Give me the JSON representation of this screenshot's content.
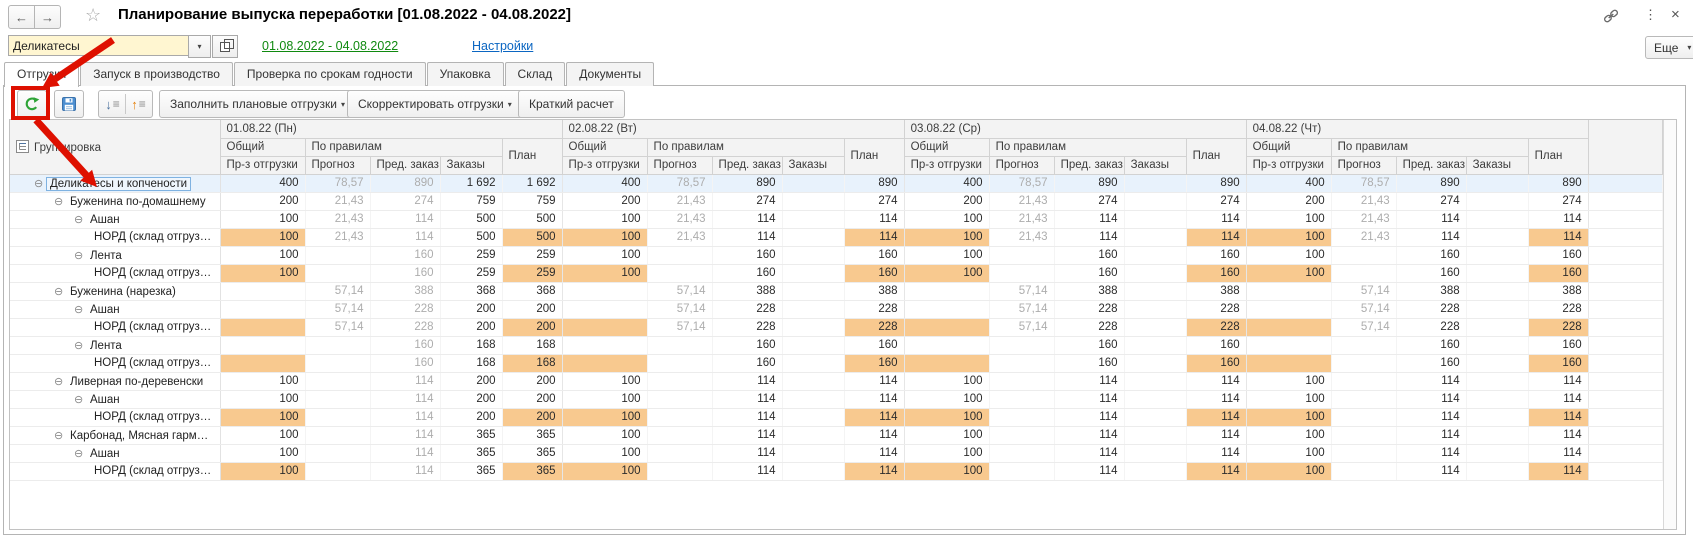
{
  "window": {
    "title": "Планирование выпуска переработки [01.08.2022 - 04.08.2022]"
  },
  "icons": {
    "back": "←",
    "forward": "→",
    "favorite_star": "☆",
    "more_vertical": "⋮",
    "close": "×",
    "dropdown": "▾",
    "expander": "⊖",
    "expand_all_arrow": "↓",
    "collapse_all_arrow": "↑",
    "list_lines": "≡"
  },
  "colors": {
    "annotation_red": "#de1000",
    "highlight_orange": "#f8c98f",
    "selected_row_blue": "#e8f2fc",
    "period_link_green": "#108a10",
    "settings_link_blue": "#0b66c2",
    "input_yellow": "#fff6d1",
    "refresh_green": "#2ea437",
    "save_blue": "#4d8fd1"
  },
  "filter_bar": {
    "product_group_value": "Деликатесы",
    "period_link": "01.08.2022 - 04.08.2022",
    "settings_link": "Настройки",
    "more_button": "Еще"
  },
  "tabs": [
    {
      "id": "shipments",
      "label": "Отгрузки",
      "active": true
    },
    {
      "id": "production-launch",
      "label": "Запуск в производство",
      "active": false
    },
    {
      "id": "expiry-check",
      "label": "Проверка по срокам годности",
      "active": false
    },
    {
      "id": "packaging",
      "label": "Упаковка",
      "active": false
    },
    {
      "id": "warehouse",
      "label": "Склад",
      "active": false
    },
    {
      "id": "documents",
      "label": "Документы",
      "active": false
    }
  ],
  "toolbar": {
    "fill_label": "Заполнить плановые отгрузки",
    "adjust_label": "Скорректировать отгрузки",
    "calc_label": "Краткий расчет"
  },
  "table": {
    "grouping_header": "Группировка",
    "day_headers": [
      "01.08.22 (Пн)",
      "02.08.22 (Вт)",
      "03.08.22 (Ср)",
      "04.08.22 (Чт)"
    ],
    "group_cols": {
      "total": "Общий",
      "by_rules": "По правилам",
      "plan": "План"
    },
    "sub_cols": [
      "Пр-з отгрузки",
      "Прогноз",
      "Пред. заказ",
      "Заказы"
    ],
    "rows": [
      {
        "name": "Деликатесы и копчености",
        "level": 0,
        "leaf": false,
        "selected": true,
        "hl": false,
        "days": [
          [
            "400",
            "78,57",
            "890",
            "1 692",
            "1 692"
          ],
          [
            "400",
            "78,57",
            "890",
            "",
            "890"
          ],
          [
            "400",
            "78,57",
            "890",
            "",
            "890"
          ],
          [
            "400",
            "78,57",
            "890",
            "",
            "890"
          ]
        ]
      },
      {
        "name": "Буженина по-домашнему",
        "level": 1,
        "leaf": false,
        "selected": false,
        "hl": false,
        "days": [
          [
            "200",
            "21,43",
            "274",
            "759",
            "759"
          ],
          [
            "200",
            "21,43",
            "274",
            "",
            "274"
          ],
          [
            "200",
            "21,43",
            "274",
            "",
            "274"
          ],
          [
            "200",
            "21,43",
            "274",
            "",
            "274"
          ]
        ]
      },
      {
        "name": "Ашан",
        "level": 2,
        "leaf": false,
        "selected": false,
        "hl": false,
        "days": [
          [
            "100",
            "21,43",
            "114",
            "500",
            "500"
          ],
          [
            "100",
            "21,43",
            "114",
            "",
            "114"
          ],
          [
            "100",
            "21,43",
            "114",
            "",
            "114"
          ],
          [
            "100",
            "21,43",
            "114",
            "",
            "114"
          ]
        ]
      },
      {
        "name": "НОРД (склад отгруз…",
        "level": 3,
        "leaf": true,
        "selected": false,
        "hl": true,
        "days": [
          [
            "100",
            "21,43",
            "114",
            "500",
            "500"
          ],
          [
            "100",
            "21,43",
            "114",
            "",
            "114"
          ],
          [
            "100",
            "21,43",
            "114",
            "",
            "114"
          ],
          [
            "100",
            "21,43",
            "114",
            "",
            "114"
          ]
        ]
      },
      {
        "name": "Лента",
        "level": 2,
        "leaf": false,
        "selected": false,
        "hl": false,
        "days": [
          [
            "100",
            "",
            "160",
            "259",
            "259"
          ],
          [
            "100",
            "",
            "160",
            "",
            "160"
          ],
          [
            "100",
            "",
            "160",
            "",
            "160"
          ],
          [
            "100",
            "",
            "160",
            "",
            "160"
          ]
        ]
      },
      {
        "name": "НОРД (склад отгруз…",
        "level": 3,
        "leaf": true,
        "selected": false,
        "hl": true,
        "days": [
          [
            "100",
            "",
            "160",
            "259",
            "259"
          ],
          [
            "100",
            "",
            "160",
            "",
            "160"
          ],
          [
            "100",
            "",
            "160",
            "",
            "160"
          ],
          [
            "100",
            "",
            "160",
            "",
            "160"
          ]
        ]
      },
      {
        "name": "Буженина (нарезка)",
        "level": 1,
        "leaf": false,
        "selected": false,
        "hl": false,
        "days": [
          [
            "",
            "57,14",
            "388",
            "368",
            "368"
          ],
          [
            "",
            "57,14",
            "388",
            "",
            "388"
          ],
          [
            "",
            "57,14",
            "388",
            "",
            "388"
          ],
          [
            "",
            "57,14",
            "388",
            "",
            "388"
          ]
        ]
      },
      {
        "name": "Ашан",
        "level": 2,
        "leaf": false,
        "selected": false,
        "hl": false,
        "days": [
          [
            "",
            "57,14",
            "228",
            "200",
            "200"
          ],
          [
            "",
            "57,14",
            "228",
            "",
            "228"
          ],
          [
            "",
            "57,14",
            "228",
            "",
            "228"
          ],
          [
            "",
            "57,14",
            "228",
            "",
            "228"
          ]
        ]
      },
      {
        "name": "НОРД (склад отгруз…",
        "level": 3,
        "leaf": true,
        "selected": false,
        "hl": true,
        "days": [
          [
            "",
            "57,14",
            "228",
            "200",
            "200"
          ],
          [
            "",
            "57,14",
            "228",
            "",
            "228"
          ],
          [
            "",
            "57,14",
            "228",
            "",
            "228"
          ],
          [
            "",
            "57,14",
            "228",
            "",
            "228"
          ]
        ]
      },
      {
        "name": "Лента",
        "level": 2,
        "leaf": false,
        "selected": false,
        "hl": false,
        "days": [
          [
            "",
            "",
            "160",
            "168",
            "168"
          ],
          [
            "",
            "",
            "160",
            "",
            "160"
          ],
          [
            "",
            "",
            "160",
            "",
            "160"
          ],
          [
            "",
            "",
            "160",
            "",
            "160"
          ]
        ]
      },
      {
        "name": "НОРД (склад отгруз…",
        "level": 3,
        "leaf": true,
        "selected": false,
        "hl": true,
        "days": [
          [
            "",
            "",
            "160",
            "168",
            "168"
          ],
          [
            "",
            "",
            "160",
            "",
            "160"
          ],
          [
            "",
            "",
            "160",
            "",
            "160"
          ],
          [
            "",
            "",
            "160",
            "",
            "160"
          ]
        ]
      },
      {
        "name": "Ливерная по-деревенски",
        "level": 1,
        "leaf": false,
        "selected": false,
        "hl": false,
        "days": [
          [
            "100",
            "",
            "114",
            "200",
            "200"
          ],
          [
            "100",
            "",
            "114",
            "",
            "114"
          ],
          [
            "100",
            "",
            "114",
            "",
            "114"
          ],
          [
            "100",
            "",
            "114",
            "",
            "114"
          ]
        ]
      },
      {
        "name": "Ашан",
        "level": 2,
        "leaf": false,
        "selected": false,
        "hl": false,
        "days": [
          [
            "100",
            "",
            "114",
            "200",
            "200"
          ],
          [
            "100",
            "",
            "114",
            "",
            "114"
          ],
          [
            "100",
            "",
            "114",
            "",
            "114"
          ],
          [
            "100",
            "",
            "114",
            "",
            "114"
          ]
        ]
      },
      {
        "name": "НОРД (склад отгруз…",
        "level": 3,
        "leaf": true,
        "selected": false,
        "hl": true,
        "days": [
          [
            "100",
            "",
            "114",
            "200",
            "200"
          ],
          [
            "100",
            "",
            "114",
            "",
            "114"
          ],
          [
            "100",
            "",
            "114",
            "",
            "114"
          ],
          [
            "100",
            "",
            "114",
            "",
            "114"
          ]
        ]
      },
      {
        "name": "Карбонад, Мясная гармония",
        "level": 1,
        "leaf": false,
        "selected": false,
        "hl": false,
        "days": [
          [
            "100",
            "",
            "114",
            "365",
            "365"
          ],
          [
            "100",
            "",
            "114",
            "",
            "114"
          ],
          [
            "100",
            "",
            "114",
            "",
            "114"
          ],
          [
            "100",
            "",
            "114",
            "",
            "114"
          ]
        ]
      },
      {
        "name": "Ашан",
        "level": 2,
        "leaf": false,
        "selected": false,
        "hl": false,
        "days": [
          [
            "100",
            "",
            "114",
            "365",
            "365"
          ],
          [
            "100",
            "",
            "114",
            "",
            "114"
          ],
          [
            "100",
            "",
            "114",
            "",
            "114"
          ],
          [
            "100",
            "",
            "114",
            "",
            "114"
          ]
        ]
      },
      {
        "name": "НОРД (склад отгруз…",
        "level": 3,
        "leaf": true,
        "selected": false,
        "hl": true,
        "days": [
          [
            "100",
            "",
            "114",
            "365",
            "365"
          ],
          [
            "100",
            "",
            "114",
            "",
            "114"
          ],
          [
            "100",
            "",
            "114",
            "",
            "114"
          ],
          [
            "100",
            "",
            "114",
            "",
            "114"
          ]
        ]
      }
    ]
  }
}
